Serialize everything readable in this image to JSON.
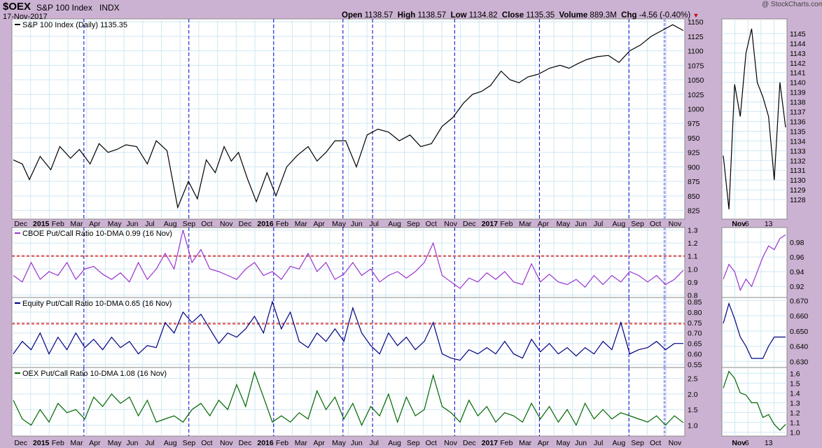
{
  "header": {
    "symbol": "$OEX",
    "name": "S&P 100 Index",
    "exchange": "INDX",
    "date": "17-Nov-2017",
    "watermark": "@ StockCharts.com",
    "ohlc": {
      "open_label": "Open",
      "open": "1138.57",
      "high_label": "High",
      "high": "1138.57",
      "low_label": "Low",
      "low": "1134.82",
      "close_label": "Close",
      "close": "1135.35",
      "volume_label": "Volume",
      "volume": "889.3M",
      "chg_label": "Chg",
      "chg": "-4.56 (-0.40%)"
    }
  },
  "colors": {
    "background": "#ccb2d2",
    "plot": "#ffffff",
    "grid": "#cfe7f3",
    "price": "#000000",
    "cboe": "#9933cc",
    "equity": "#000080",
    "oex": "#006600",
    "event_line": "#0000cc",
    "threshold": "#e06666",
    "chg_down": "#cc0000"
  },
  "chart_data": [
    {
      "type": "line",
      "panel": "price",
      "legend": "S&P 100 Index (Daily) 1135.35",
      "ylim": [
        810,
        1155
      ],
      "yticks": [
        825,
        850,
        875,
        900,
        925,
        950,
        975,
        1000,
        1025,
        1050,
        1075,
        1100,
        1125,
        1150
      ],
      "x_labels": [
        "Dec",
        "2015",
        "Feb",
        "Mar",
        "Apr",
        "May",
        "Jun",
        "Jul",
        "Aug",
        "Sep",
        "Oct",
        "Nov",
        "Dec",
        "2016",
        "Feb",
        "Mar",
        "Apr",
        "May",
        "Jun",
        "Jul",
        "Aug",
        "Sep",
        "Oct",
        "Nov",
        "Dec",
        "2017",
        "Feb",
        "Mar",
        "Apr",
        "May",
        "Jun",
        "Jul",
        "Aug",
        "Sep",
        "Oct",
        "Nov"
      ],
      "x": [
        0,
        10,
        18,
        30,
        42,
        52,
        64,
        74,
        86,
        96,
        106,
        116,
        126,
        138,
        150,
        160,
        172,
        184,
        196,
        206,
        216,
        226,
        236,
        244,
        252,
        262,
        272,
        284,
        294,
        306,
        318,
        330,
        340,
        350,
        360,
        372,
        384,
        396,
        408,
        420,
        432,
        444,
        456,
        468,
        480,
        492,
        504,
        514,
        524,
        534,
        546,
        556,
        566,
        576,
        588,
        600,
        612,
        622,
        632,
        642,
        654,
        666,
        678,
        690,
        702,
        714,
        726,
        738,
        750
      ],
      "values": [
        912,
        905,
        878,
        918,
        895,
        935,
        915,
        930,
        905,
        940,
        925,
        930,
        938,
        935,
        905,
        945,
        928,
        830,
        875,
        845,
        912,
        890,
        935,
        910,
        925,
        880,
        840,
        890,
        850,
        900,
        920,
        935,
        910,
        925,
        945,
        945,
        900,
        955,
        965,
        960,
        945,
        955,
        935,
        940,
        970,
        985,
        1010,
        1025,
        1030,
        1040,
        1065,
        1050,
        1045,
        1055,
        1060,
        1070,
        1075,
        1070,
        1078,
        1085,
        1090,
        1092,
        1080,
        1100,
        1110,
        1125,
        1135,
        1145,
        1135
      ]
    },
    {
      "type": "line",
      "panel": "cboe",
      "legend": "CBOE Put/Call Ratio 10-DMA 0.99 (16 Nov)",
      "ylim": [
        0.78,
        1.32
      ],
      "yticks": [
        0.8,
        0.9,
        1.0,
        1.1,
        1.2,
        1.3
      ],
      "threshold": 1.1,
      "x": [
        0,
        10,
        20,
        30,
        40,
        50,
        60,
        70,
        80,
        90,
        100,
        110,
        120,
        130,
        140,
        150,
        160,
        170,
        180,
        190,
        200,
        210,
        220,
        230,
        240,
        250,
        260,
        270,
        280,
        290,
        300,
        310,
        320,
        330,
        340,
        350,
        360,
        370,
        380,
        390,
        400,
        410,
        420,
        430,
        440,
        450,
        460,
        470,
        480,
        490,
        500,
        510,
        520,
        530,
        540,
        550,
        560,
        570,
        580,
        590,
        600,
        610,
        620,
        630,
        640,
        650,
        660,
        670,
        680,
        690,
        700,
        710,
        720,
        730,
        740,
        750
      ],
      "values": [
        0.95,
        0.9,
        1.05,
        0.92,
        0.98,
        0.95,
        1.05,
        0.92,
        1.0,
        1.02,
        0.96,
        0.92,
        0.97,
        0.9,
        1.05,
        0.92,
        1.0,
        1.12,
        1.0,
        1.3,
        1.05,
        1.15,
        1.0,
        0.98,
        0.95,
        0.92,
        1.0,
        1.05,
        0.95,
        0.98,
        0.92,
        1.02,
        1.0,
        1.12,
        0.98,
        1.05,
        0.92,
        0.96,
        1.05,
        0.95,
        1.0,
        0.9,
        0.95,
        0.98,
        0.93,
        0.98,
        1.05,
        1.2,
        0.95,
        0.9,
        0.85,
        0.93,
        0.9,
        0.97,
        0.92,
        0.98,
        0.9,
        0.88,
        1.04,
        0.9,
        0.96,
        0.9,
        0.88,
        0.92,
        0.86,
        0.95,
        0.88,
        0.95,
        0.9,
        0.98,
        0.95,
        0.9,
        0.95,
        0.88,
        0.92,
        0.99
      ]
    },
    {
      "type": "line",
      "panel": "equity",
      "legend": "Equity Put/Call Ratio 10-DMA 0.65 (16 Nov)",
      "ylim": [
        0.535,
        0.87
      ],
      "yticks": [
        0.55,
        0.6,
        0.65,
        0.7,
        0.75,
        0.8,
        0.85
      ],
      "threshold": 0.745,
      "x": [
        0,
        10,
        20,
        30,
        40,
        50,
        60,
        70,
        80,
        90,
        100,
        110,
        120,
        130,
        140,
        150,
        160,
        170,
        180,
        190,
        200,
        210,
        220,
        230,
        240,
        250,
        260,
        270,
        280,
        290,
        300,
        310,
        320,
        330,
        340,
        350,
        360,
        370,
        380,
        390,
        400,
        410,
        420,
        430,
        440,
        450,
        460,
        470,
        480,
        490,
        500,
        510,
        520,
        530,
        540,
        550,
        560,
        570,
        580,
        590,
        600,
        610,
        620,
        630,
        640,
        650,
        660,
        670,
        680,
        690,
        700,
        710,
        720,
        730,
        740,
        750
      ],
      "values": [
        0.6,
        0.66,
        0.62,
        0.7,
        0.6,
        0.68,
        0.62,
        0.7,
        0.63,
        0.67,
        0.62,
        0.68,
        0.63,
        0.66,
        0.6,
        0.64,
        0.63,
        0.75,
        0.7,
        0.8,
        0.75,
        0.79,
        0.72,
        0.65,
        0.7,
        0.68,
        0.72,
        0.78,
        0.7,
        0.85,
        0.72,
        0.8,
        0.66,
        0.63,
        0.7,
        0.66,
        0.72,
        0.66,
        0.82,
        0.7,
        0.64,
        0.6,
        0.7,
        0.64,
        0.68,
        0.62,
        0.66,
        0.75,
        0.6,
        0.58,
        0.57,
        0.62,
        0.6,
        0.63,
        0.6,
        0.66,
        0.6,
        0.58,
        0.67,
        0.61,
        0.65,
        0.6,
        0.63,
        0.59,
        0.63,
        0.6,
        0.66,
        0.62,
        0.75,
        0.6,
        0.62,
        0.63,
        0.66,
        0.62,
        0.65,
        0.65
      ]
    },
    {
      "type": "line",
      "panel": "oex",
      "legend": "OEX Put/Call Ratio 10-DMA 1.08 (16 Nov)",
      "ylim": [
        0.65,
        2.85
      ],
      "yticks": [
        1.0,
        1.5,
        2.0,
        2.5
      ],
      "x": [
        0,
        10,
        20,
        30,
        40,
        50,
        60,
        70,
        80,
        90,
        100,
        110,
        120,
        130,
        140,
        150,
        160,
        170,
        180,
        190,
        200,
        210,
        220,
        230,
        240,
        250,
        260,
        270,
        280,
        290,
        300,
        310,
        320,
        330,
        340,
        350,
        360,
        370,
        380,
        390,
        400,
        410,
        420,
        430,
        440,
        450,
        460,
        470,
        480,
        490,
        500,
        510,
        520,
        530,
        540,
        550,
        560,
        570,
        580,
        590,
        600,
        610,
        620,
        630,
        640,
        650,
        660,
        670,
        680,
        690,
        700,
        710,
        720,
        730,
        740,
        750
      ],
      "values": [
        1.8,
        1.2,
        1.0,
        1.5,
        1.1,
        1.7,
        1.4,
        1.5,
        1.2,
        1.9,
        1.6,
        2.0,
        1.7,
        1.9,
        1.3,
        1.8,
        1.1,
        1.2,
        1.3,
        1.1,
        1.5,
        1.7,
        1.3,
        1.8,
        1.5,
        2.3,
        1.6,
        2.7,
        1.9,
        1.1,
        1.3,
        1.1,
        1.4,
        1.2,
        2.1,
        1.5,
        1.9,
        1.2,
        1.7,
        1.0,
        1.6,
        1.3,
        2.0,
        1.1,
        1.9,
        1.3,
        1.5,
        2.6,
        1.6,
        1.4,
        1.1,
        1.8,
        1.3,
        1.6,
        1.1,
        1.4,
        1.3,
        1.1,
        1.7,
        1.2,
        1.6,
        1.1,
        1.5,
        1.0,
        1.7,
        1.2,
        1.5,
        1.2,
        1.4,
        1.3,
        1.2,
        1.1,
        1.3,
        1.0,
        1.3,
        1.08
      ]
    },
    {
      "type": "line",
      "panel": "price_zoom",
      "ylim": [
        1126,
        1146.5
      ],
      "yticks": [
        1128,
        1129,
        1130,
        1131,
        1132,
        1133,
        1134,
        1135,
        1136,
        1137,
        1138,
        1139,
        1140,
        1141,
        1142,
        1143,
        1144,
        1145
      ],
      "x": [
        0,
        1,
        2,
        3,
        4,
        5,
        6,
        7,
        8,
        9,
        10,
        11
      ],
      "values": [
        1132.5,
        1127,
        1139.8,
        1136.5,
        1143,
        1145.5,
        1140,
        1138.5,
        1136.5,
        1130,
        1140,
        1135.4
      ]
    },
    {
      "type": "line",
      "panel": "cboe_zoom",
      "ylim": [
        0.905,
        1.0
      ],
      "yticks": [
        0.92,
        0.94,
        0.96,
        0.98
      ],
      "x": [
        0,
        1,
        2,
        3,
        4,
        5,
        6,
        7,
        8,
        9,
        10,
        11
      ],
      "values": [
        0.93,
        0.95,
        0.94,
        0.915,
        0.93,
        0.92,
        0.94,
        0.96,
        0.975,
        0.97,
        0.985,
        0.99
      ]
    },
    {
      "type": "line",
      "panel": "equity_zoom",
      "ylim": [
        0.626,
        0.672
      ],
      "yticks": [
        0.63,
        0.64,
        0.65,
        0.66,
        0.67
      ],
      "x": [
        0,
        1,
        2,
        3,
        4,
        5,
        6,
        7,
        8,
        9,
        10,
        11
      ],
      "values": [
        0.655,
        0.668,
        0.658,
        0.646,
        0.64,
        0.632,
        0.632,
        0.632,
        0.64,
        0.646,
        0.646,
        0.646
      ]
    },
    {
      "type": "line",
      "panel": "oex_zoom",
      "ylim": [
        0.96,
        1.66
      ],
      "yticks": [
        1.0,
        1.1,
        1.2,
        1.3,
        1.4,
        1.5,
        1.6
      ],
      "x": [
        0,
        1,
        2,
        3,
        4,
        5,
        6,
        7,
        8,
        9,
        10,
        11
      ],
      "values": [
        1.45,
        1.62,
        1.55,
        1.4,
        1.38,
        1.3,
        1.3,
        1.15,
        1.18,
        1.08,
        1.02,
        1.08
      ]
    }
  ],
  "zoom_x_labels": [
    "Nov",
    "6",
    "13"
  ]
}
